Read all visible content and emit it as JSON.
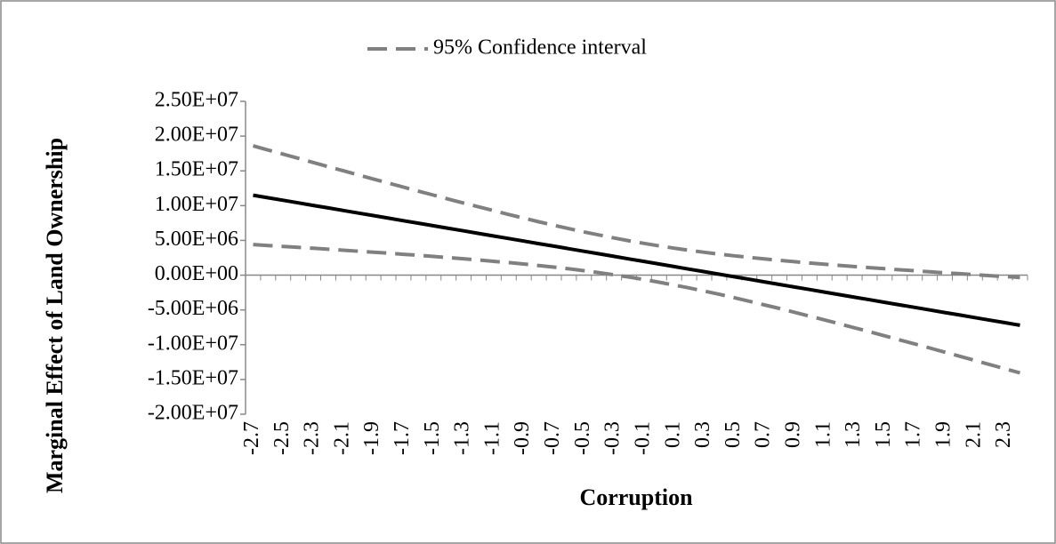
{
  "chart_data": {
    "type": "line",
    "x_label": "Corruption",
    "y_label": "Marginal Effect of Land Ownership",
    "categories": [
      "-2.7",
      null,
      "-2.5",
      null,
      "-2.3",
      null,
      "-2.1",
      null,
      "-1.9",
      null,
      "-1.7",
      null,
      "-1.5",
      null,
      "-1.3",
      null,
      "-1.1",
      null,
      "-0.9",
      null,
      "-0.7",
      null,
      "-0.5",
      null,
      "-0.3",
      null,
      "-0.1",
      null,
      "0.1",
      null,
      "0.3",
      null,
      "0.5",
      null,
      "0.7",
      null,
      "0.9",
      null,
      "1.1",
      null,
      "1.3",
      null,
      "1.5",
      null,
      "1.7",
      null,
      "1.9",
      null,
      "2.1",
      null,
      "2.3",
      null
    ],
    "series": [
      {
        "color": "#000000",
        "dashed": false,
        "values": [
          11500000,
          11130000,
          10770000,
          10400000,
          10030000,
          9670000,
          9300000,
          8930000,
          8570000,
          8200000,
          7830000,
          7470000,
          7100000,
          6730000,
          6370000,
          6000000,
          5630000,
          5270000,
          4900000,
          4530000,
          4170000,
          3800000,
          3430000,
          3070000,
          2700000,
          2330000,
          1970000,
          1600000,
          1230000,
          870000,
          500000,
          130000,
          -230000,
          -600000,
          -970000,
          -1330000,
          -1700000,
          -2070000,
          -2430000,
          -2800000,
          -3170000,
          -3530000,
          -3900000,
          -4270000,
          -4630000,
          -5000000,
          -5370000,
          -5730000,
          -6100000,
          -6470000,
          -6830000,
          -7200000
        ]
      },
      {
        "name": "95% Confidence interval",
        "color": "#808080",
        "dashed": true,
        "values": [
          18600000,
          18000000,
          17400000,
          16800000,
          16200000,
          15610000,
          15010000,
          14410000,
          13830000,
          13240000,
          12660000,
          12080000,
          11510000,
          10930000,
          10380000,
          9820000,
          9270000,
          8730000,
          8200000,
          7680000,
          7180000,
          6690000,
          6220000,
          5780000,
          5350000,
          4940000,
          4570000,
          4210000,
          3880000,
          3580000,
          3290000,
          3020000,
          2780000,
          2550000,
          2330000,
          2130000,
          1940000,
          1750000,
          1580000,
          1400000,
          1240000,
          1080000,
          930000,
          770000,
          630000,
          480000,
          340000,
          210000,
          70000,
          -70000,
          -200000,
          -340000
        ]
      },
      {
        "color": "#808080",
        "dashed": true,
        "values": [
          4400000,
          4270000,
          4140000,
          4000000,
          3870000,
          3730000,
          3590000,
          3450000,
          3310000,
          3160000,
          3000000,
          2860000,
          2690000,
          2530000,
          2360000,
          2180000,
          1990000,
          1810000,
          1600000,
          1380000,
          1160000,
          910000,
          640000,
          360000,
          50000,
          -280000,
          -630000,
          -1010000,
          -1420000,
          -1840000,
          -2290000,
          -2760000,
          -3240000,
          -3750000,
          -4270000,
          -4790000,
          -5340000,
          -5890000,
          -6440000,
          -7000000,
          -7580000,
          -8140000,
          -8730000,
          -9310000,
          -9890000,
          -10480000,
          -11080000,
          -11670000,
          -12270000,
          -12870000,
          -13460000,
          -14060000
        ]
      }
    ],
    "ylim": [
      -20000000,
      25000000
    ],
    "yticks": [
      {
        "value": -20000000,
        "label": "-2.00E+07"
      },
      {
        "value": -15000000,
        "label": "-1.50E+07"
      },
      {
        "value": -10000000,
        "label": "-1.00E+07"
      },
      {
        "value": -5000000,
        "label": "-5.00E+06"
      },
      {
        "value": 0,
        "label": "0.00E+00"
      },
      {
        "value": 5000000,
        "label": "5.00E+06"
      },
      {
        "value": 10000000,
        "label": "1.00E+07"
      },
      {
        "value": 15000000,
        "label": "1.50E+07"
      },
      {
        "value": 20000000,
        "label": "2.00E+07"
      },
      {
        "value": 25000000,
        "label": "2.50E+07"
      }
    ],
    "legend": "top",
    "grid": false
  }
}
